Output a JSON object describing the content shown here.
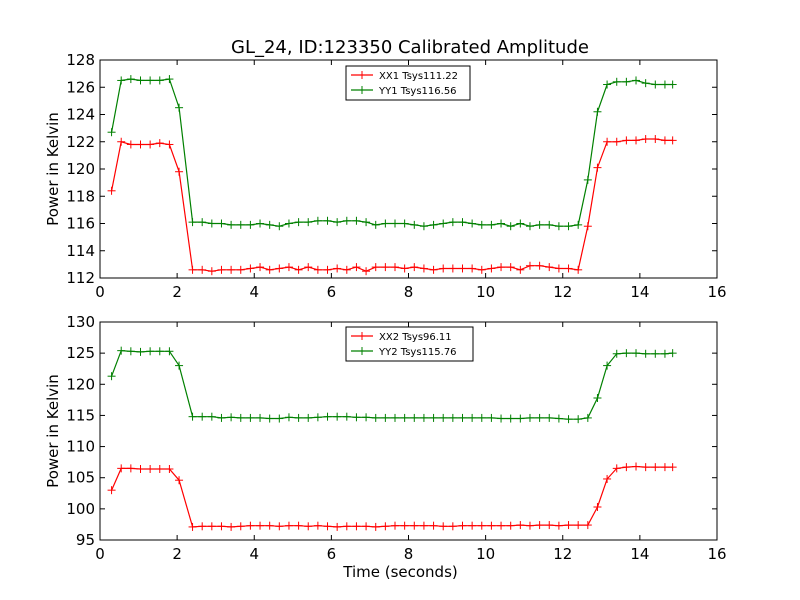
{
  "figure_title": "GL_24, ID:123350 Calibrated Amplitude",
  "chart_data": [
    {
      "type": "line",
      "title": "GL_24, ID:123350 Calibrated Amplitude",
      "xlabel": "",
      "ylabel": "Power in Kelvin",
      "xlim": [
        0,
        16
      ],
      "ylim": [
        112,
        128
      ],
      "xticks": [
        0,
        2,
        4,
        6,
        8,
        10,
        12,
        14,
        16
      ],
      "yticks": [
        112,
        114,
        116,
        118,
        120,
        122,
        124,
        126,
        128
      ],
      "grid": false,
      "legend": "top-center",
      "x": [
        0.3,
        0.55,
        0.8,
        1.05,
        1.3,
        1.55,
        1.8,
        2.05,
        2.4,
        2.65,
        2.9,
        3.15,
        3.4,
        3.65,
        3.9,
        4.15,
        4.4,
        4.65,
        4.9,
        5.15,
        5.4,
        5.65,
        5.9,
        6.15,
        6.4,
        6.65,
        6.9,
        7.15,
        7.4,
        7.65,
        7.9,
        8.15,
        8.4,
        8.65,
        8.9,
        9.15,
        9.4,
        9.65,
        9.9,
        10.15,
        10.4,
        10.65,
        10.9,
        11.15,
        11.4,
        11.65,
        11.9,
        12.15,
        12.4,
        12.65,
        12.9,
        13.15,
        13.4,
        13.65,
        13.9,
        14.15,
        14.4,
        14.65,
        14.85
      ],
      "series": [
        {
          "name": "XX1 Tsys111.22",
          "color": "#ff0000",
          "values": [
            118.4,
            122.0,
            121.8,
            121.8,
            121.8,
            121.9,
            121.8,
            119.8,
            112.6,
            112.6,
            112.5,
            112.6,
            112.6,
            112.6,
            112.7,
            112.8,
            112.6,
            112.7,
            112.8,
            112.6,
            112.8,
            112.6,
            112.6,
            112.7,
            112.6,
            112.8,
            112.5,
            112.8,
            112.8,
            112.8,
            112.7,
            112.8,
            112.7,
            112.6,
            112.7,
            112.7,
            112.7,
            112.7,
            112.6,
            112.7,
            112.8,
            112.8,
            112.6,
            112.9,
            112.9,
            112.8,
            112.7,
            112.7,
            112.6,
            115.8,
            120.1,
            122.0,
            122.0,
            122.1,
            122.1,
            122.2,
            122.2,
            122.1,
            122.1
          ]
        },
        {
          "name": "YY1 Tsys116.56",
          "color": "#008000",
          "values": [
            122.7,
            126.5,
            126.6,
            126.5,
            126.5,
            126.5,
            126.6,
            124.5,
            116.1,
            116.1,
            116.0,
            116.0,
            115.9,
            115.9,
            115.9,
            116.0,
            115.9,
            115.8,
            116.0,
            116.1,
            116.1,
            116.2,
            116.2,
            116.1,
            116.2,
            116.2,
            116.1,
            115.9,
            116.0,
            116.0,
            116.0,
            115.9,
            115.8,
            115.9,
            116.0,
            116.1,
            116.1,
            116.0,
            115.9,
            115.9,
            116.0,
            115.8,
            116.0,
            115.8,
            115.9,
            115.9,
            115.8,
            115.8,
            115.9,
            119.2,
            124.2,
            126.2,
            126.4,
            126.4,
            126.5,
            126.3,
            126.2,
            126.2,
            126.2
          ]
        }
      ]
    },
    {
      "type": "line",
      "title": "",
      "xlabel": "Time (seconds)",
      "ylabel": "Power in Kelvin",
      "xlim": [
        0,
        16
      ],
      "ylim": [
        95,
        130
      ],
      "xticks": [
        0,
        2,
        4,
        6,
        8,
        10,
        12,
        14,
        16
      ],
      "yticks": [
        95,
        100,
        105,
        110,
        115,
        120,
        125,
        130
      ],
      "grid": false,
      "legend": "top-center",
      "x": [
        0.3,
        0.55,
        0.8,
        1.05,
        1.3,
        1.55,
        1.8,
        2.05,
        2.4,
        2.65,
        2.9,
        3.15,
        3.4,
        3.65,
        3.9,
        4.15,
        4.4,
        4.65,
        4.9,
        5.15,
        5.4,
        5.65,
        5.9,
        6.15,
        6.4,
        6.65,
        6.9,
        7.15,
        7.4,
        7.65,
        7.9,
        8.15,
        8.4,
        8.65,
        8.9,
        9.15,
        9.4,
        9.65,
        9.9,
        10.15,
        10.4,
        10.65,
        10.9,
        11.15,
        11.4,
        11.65,
        11.9,
        12.15,
        12.4,
        12.65,
        12.9,
        13.15,
        13.4,
        13.65,
        13.9,
        14.15,
        14.4,
        14.65,
        14.85
      ],
      "series": [
        {
          "name": "XX2 Tsys96.11",
          "color": "#ff0000",
          "values": [
            103.0,
            106.5,
            106.5,
            106.4,
            106.4,
            106.4,
            106.4,
            104.6,
            97.1,
            97.2,
            97.2,
            97.2,
            97.1,
            97.2,
            97.3,
            97.3,
            97.3,
            97.2,
            97.3,
            97.3,
            97.2,
            97.3,
            97.2,
            97.1,
            97.2,
            97.2,
            97.2,
            97.1,
            97.2,
            97.3,
            97.3,
            97.3,
            97.3,
            97.3,
            97.2,
            97.2,
            97.3,
            97.3,
            97.3,
            97.3,
            97.3,
            97.3,
            97.4,
            97.3,
            97.4,
            97.4,
            97.3,
            97.4,
            97.4,
            97.4,
            100.3,
            104.8,
            106.5,
            106.7,
            106.8,
            106.7,
            106.7,
            106.7,
            106.7
          ]
        },
        {
          "name": "YY2 Tsys115.76",
          "color": "#008000",
          "values": [
            121.3,
            125.4,
            125.3,
            125.2,
            125.3,
            125.3,
            125.3,
            123.0,
            114.8,
            114.8,
            114.8,
            114.6,
            114.7,
            114.6,
            114.6,
            114.6,
            114.5,
            114.5,
            114.7,
            114.6,
            114.6,
            114.7,
            114.8,
            114.8,
            114.8,
            114.7,
            114.7,
            114.6,
            114.6,
            114.6,
            114.6,
            114.6,
            114.6,
            114.6,
            114.6,
            114.6,
            114.6,
            114.6,
            114.6,
            114.6,
            114.5,
            114.5,
            114.5,
            114.6,
            114.6,
            114.6,
            114.5,
            114.4,
            114.4,
            114.6,
            117.8,
            123.0,
            124.9,
            125.0,
            125.0,
            124.9,
            124.9,
            124.9,
            125.0
          ]
        }
      ]
    }
  ]
}
